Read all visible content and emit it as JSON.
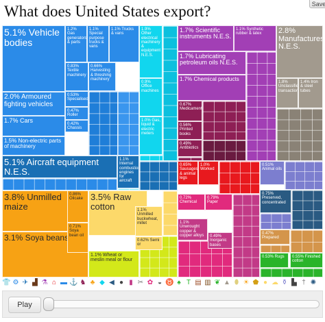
{
  "header": {
    "title": "What does United States export?",
    "save_label": "Save"
  },
  "treemap": {
    "blocks": [
      {
        "label": "5.1% Vehicle bodies",
        "color": "#2b8be8"
      },
      {
        "label": "1.2% Gas generators & parts",
        "color": "#2b8be8"
      },
      {
        "label": "1.1% Special purpose trucks & vans",
        "color": "#2b8be8"
      },
      {
        "label": "1.1% Trucks & vans",
        "color": "#2b8be8"
      },
      {
        "label": "0.83% Textile machinery",
        "color": "#2b8be8"
      },
      {
        "label": "0.66% Harvesting & threshing machinery",
        "color": "#2b8be8"
      },
      {
        "label": "0.53% Specialised",
        "color": "#2b8be8"
      },
      {
        "label": "0.47% Roller",
        "color": "#2b8be8"
      },
      {
        "label": "0.42% Chassis",
        "color": "#2b8be8"
      },
      {
        "label": "2.0% Armoured fighting vehicles",
        "color": "#2b8be8"
      },
      {
        "label": "1.7% Cars",
        "color": "#2b8be8"
      },
      {
        "label": "1.5% Non-electric parts of machinery",
        "color": "#2b8be8"
      },
      {
        "label": "1.9% Other electrical machinery & equipment N.E.S.",
        "color": "#11d6ee"
      },
      {
        "label": "0.9% Office machines",
        "color": "#11d6ee"
      },
      {
        "label": "1.0% Gas, liquid & electric meters",
        "color": "#11d6ee"
      },
      {
        "label": "1.7% Scientific instruments N.E.S.",
        "color": "#a23fb5"
      },
      {
        "label": "1.1% Synthetic rubber & latex",
        "color": "#a23fb5"
      },
      {
        "label": "1.7% Lubricating petroleum oils N.E.S.",
        "color": "#a23fb5"
      },
      {
        "label": "1.7% Chemical products",
        "color": "#a23fb5"
      },
      {
        "label": "2.8% Manufactures N.E.S.",
        "color": "#a29a8e"
      },
      {
        "label": "1.8% Unclassified transactions",
        "color": "#a29a8e"
      },
      {
        "label": "1.4% Iron & steel tubes",
        "color": "#a29a8e"
      },
      {
        "label": "0.67% Medicaments",
        "color": "#8e1f55"
      },
      {
        "label": "0.56% Printed books",
        "color": "#8e1f55"
      },
      {
        "label": "0.49% Antibiotics",
        "color": "#8e1f55"
      },
      {
        "label": "5.1% Aircraft equipment N.E.S.",
        "color": "#1a6fb4"
      },
      {
        "label": "1.1% Internal combustion engines for aircraft",
        "color": "#1a6fb4"
      },
      {
        "label": "0.65% Sausages & animal legs",
        "color": "#e8191e"
      },
      {
        "label": "1.0% Worked",
        "color": "#e8191e"
      },
      {
        "label": "0.51% Animal oils",
        "color": "#7c7ecf"
      },
      {
        "label": "3.8% Unmilled maize",
        "color": "#f7a214"
      },
      {
        "label": "3.1% Soya beans",
        "color": "#f7a214"
      },
      {
        "label": "0.86% Oilcake",
        "color": "#f7a214"
      },
      {
        "label": "0.71% Soya bean oil",
        "color": "#f7a214"
      },
      {
        "label": "3.5% Raw cotton",
        "color": "#fcd96a"
      },
      {
        "label": "1.1% Unmilled buckwheat, millet",
        "color": "#fcd96a"
      },
      {
        "label": "0.62% Semi or",
        "color": "#fcd96a"
      },
      {
        "label": "1.1% Wheat or meslin meal or flour",
        "color": "#d3e81a"
      },
      {
        "label": "0.72% Chemical",
        "color": "#e12a7d"
      },
      {
        "label": "0.79% Paper",
        "color": "#e12a7d"
      },
      {
        "label": "1.1% Unwrought copper & copper alloys",
        "color": "#c23a87"
      },
      {
        "label": "0.49% Inorganic bases",
        "color": "#c23a87"
      },
      {
        "label": "0.75% Preserved, concentrated",
        "color": "#2a5a82"
      },
      {
        "label": "0.47% Prepared",
        "color": "#d4954b"
      },
      {
        "label": "0.53% Rugs",
        "color": "#2ab42a"
      },
      {
        "label": "0.55% Finished cotton",
        "color": "#2ab42a"
      }
    ]
  },
  "icon_bar": {
    "icons": [
      {
        "name": "clothing-icon",
        "glyph": "👕",
        "color": "#2ab42a"
      },
      {
        "name": "machinery-icon",
        "glyph": "⚙",
        "color": "#2b8be8"
      },
      {
        "name": "airplane-icon",
        "glyph": "✈",
        "color": "#1a6fb4"
      },
      {
        "name": "boot-icon",
        "glyph": "▟",
        "color": "#6a3a1a"
      },
      {
        "name": "flask-icon",
        "glyph": "⚗",
        "color": "#a23fb5"
      },
      {
        "name": "house-icon",
        "glyph": "⌂",
        "color": "#e8191e"
      },
      {
        "name": "car-icon",
        "glyph": "▬",
        "color": "#2b8be8"
      },
      {
        "name": "anchor-icon",
        "glyph": "⚓",
        "color": "#1a6fb4"
      },
      {
        "name": "horse-icon",
        "glyph": "♞",
        "color": "#8e1f55"
      },
      {
        "name": "wheat-icon",
        "glyph": "♣",
        "color": "#f7a214"
      },
      {
        "name": "gem-icon",
        "glyph": "◆",
        "color": "#11d6ee"
      },
      {
        "name": "fish-icon",
        "glyph": "◀",
        "color": "#2a5a82"
      },
      {
        "name": "drop-icon",
        "glyph": "●",
        "color": "#444444"
      },
      {
        "name": "bottle-icon",
        "glyph": "▮",
        "color": "#c23a87"
      },
      {
        "name": "wrench-icon",
        "glyph": "✂",
        "color": "#777777"
      },
      {
        "name": "flower-icon",
        "glyph": "✿",
        "color": "#e12a7d"
      },
      {
        "name": "pan-icon",
        "glyph": "◒",
        "color": "#555555"
      },
      {
        "name": "cow-icon",
        "glyph": "♉",
        "color": "#8e1f55"
      },
      {
        "name": "plant-icon",
        "glyph": "♠",
        "color": "#2ab42a"
      },
      {
        "name": "shirt-icon",
        "glyph": "T",
        "color": "#2ab42a"
      },
      {
        "name": "wood-icon",
        "glyph": "▤",
        "color": "#a0522d"
      },
      {
        "name": "barrel-icon",
        "glyph": "▥",
        "color": "#7a4a1a"
      },
      {
        "name": "leaf-icon",
        "glyph": "❦",
        "color": "#2ab42a"
      },
      {
        "name": "stone-icon",
        "glyph": "▲",
        "color": "#a29a8e"
      },
      {
        "name": "egg-icon",
        "glyph": "⬮",
        "color": "#e0d080"
      },
      {
        "name": "sun-icon",
        "glyph": "☀",
        "color": "#f7a214"
      },
      {
        "name": "gold-icon",
        "glyph": "⬟",
        "color": "#d4a017"
      },
      {
        "name": "seed-icon",
        "glyph": "●",
        "color": "#fcd96a"
      },
      {
        "name": "cotton-icon",
        "glyph": "☁",
        "color": "#fcd96a"
      },
      {
        "name": "vase-icon",
        "glyph": "⚱",
        "color": "#7c7ecf"
      },
      {
        "name": "shoe-icon",
        "glyph": "▙",
        "color": "#444444"
      },
      {
        "name": "knife-icon",
        "glyph": "†",
        "color": "#777777"
      },
      {
        "name": "fan-icon",
        "glyph": "✺",
        "color": "#2a5a82"
      }
    ]
  },
  "controls": {
    "play_label": "Play",
    "slider_position": 0
  }
}
